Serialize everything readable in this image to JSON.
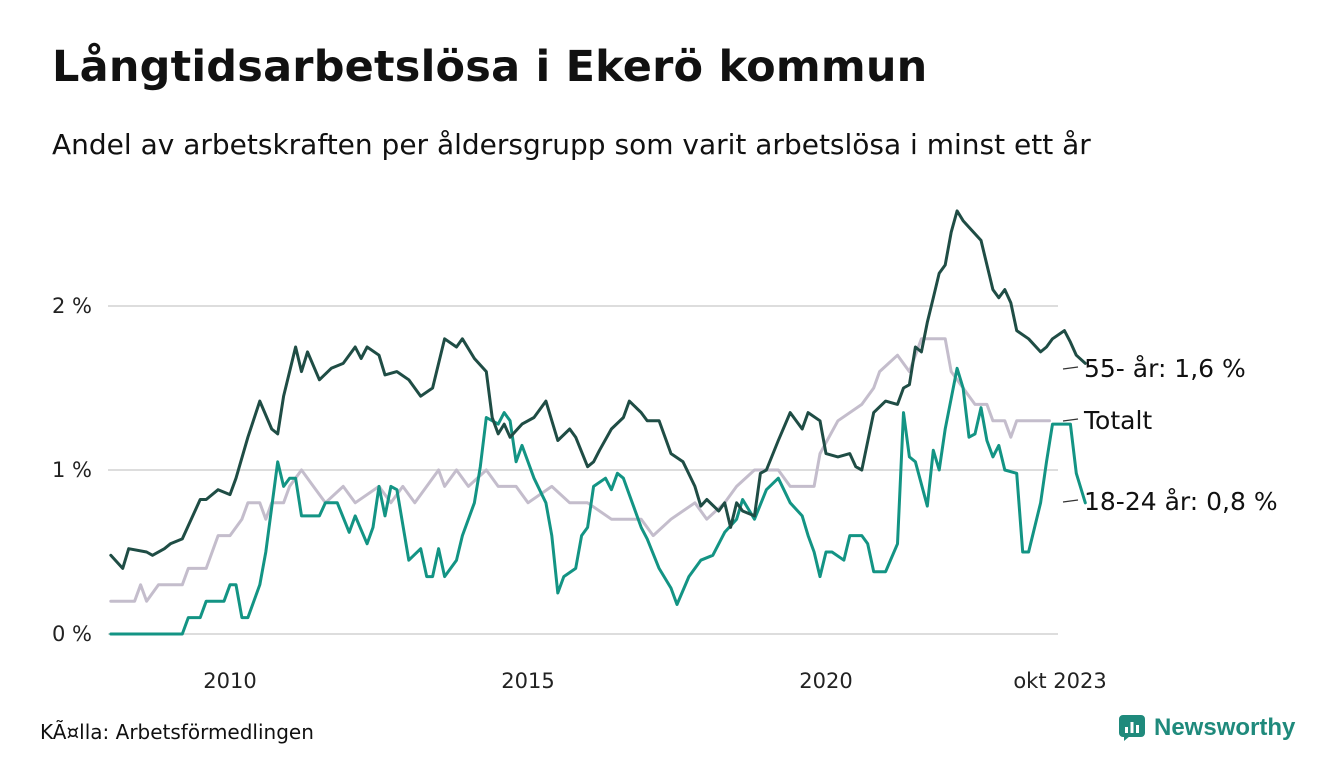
{
  "title": "Långtidsarbetslösa i Ekerö kommun",
  "subtitle": "Andel av arbetskraften per åldersgrupp som varit arbetslösa i minst ett år",
  "source": "KÃ¤lla: Arbetsförmedlingen",
  "brand": "Newsworthy",
  "colors": {
    "age55": "#1f4d45",
    "total": "#c4bdcc",
    "age1824": "#139484",
    "grid": "#dddddd",
    "brand": "#1f8a7c"
  },
  "chart_data": {
    "type": "line",
    "x_start": 2008.0,
    "x_end": 2023.75,
    "x_step_months": 1,
    "ylim": [
      0,
      2.6
    ],
    "yticks": [
      {
        "value": 0,
        "label": "0 %"
      },
      {
        "value": 1,
        "label": "1 %"
      },
      {
        "value": 2,
        "label": "2 %"
      }
    ],
    "xticks": [
      {
        "value": 2010,
        "label": "2010"
      },
      {
        "value": 2015,
        "label": "2015"
      },
      {
        "value": 2020,
        "label": "2020"
      },
      {
        "value": 2023.75,
        "label": "okt 2023"
      }
    ],
    "grid": true,
    "series": [
      {
        "name": "Totalt",
        "color_key": "total",
        "end_label": "Totalt",
        "anchors": [
          [
            2008.0,
            0.2
          ],
          [
            2008.4,
            0.2
          ],
          [
            2008.5,
            0.3
          ],
          [
            2008.6,
            0.2
          ],
          [
            2008.8,
            0.3
          ],
          [
            2009.2,
            0.3
          ],
          [
            2009.3,
            0.4
          ],
          [
            2009.6,
            0.4
          ],
          [
            2009.8,
            0.6
          ],
          [
            2010.0,
            0.6
          ],
          [
            2010.2,
            0.7
          ],
          [
            2010.3,
            0.8
          ],
          [
            2010.5,
            0.8
          ],
          [
            2010.6,
            0.7
          ],
          [
            2010.7,
            0.8
          ],
          [
            2010.9,
            0.8
          ],
          [
            2011.0,
            0.9
          ],
          [
            2011.2,
            1.0
          ],
          [
            2011.4,
            0.9
          ],
          [
            2011.6,
            0.8
          ],
          [
            2011.9,
            0.9
          ],
          [
            2012.1,
            0.8
          ],
          [
            2012.5,
            0.9
          ],
          [
            2012.7,
            0.8
          ],
          [
            2012.9,
            0.9
          ],
          [
            2013.1,
            0.8
          ],
          [
            2013.3,
            0.9
          ],
          [
            2013.5,
            1.0
          ],
          [
            2013.6,
            0.9
          ],
          [
            2013.8,
            1.0
          ],
          [
            2014.0,
            0.9
          ],
          [
            2014.3,
            1.0
          ],
          [
            2014.5,
            0.9
          ],
          [
            2014.8,
            0.9
          ],
          [
            2015.0,
            0.8
          ],
          [
            2015.4,
            0.9
          ],
          [
            2015.7,
            0.8
          ],
          [
            2016.0,
            0.8
          ],
          [
            2016.4,
            0.7
          ],
          [
            2016.9,
            0.7
          ],
          [
            2017.1,
            0.6
          ],
          [
            2017.4,
            0.7
          ],
          [
            2017.8,
            0.8
          ],
          [
            2018.0,
            0.7
          ],
          [
            2018.3,
            0.8
          ],
          [
            2018.5,
            0.9
          ],
          [
            2018.8,
            1.0
          ],
          [
            2019.2,
            1.0
          ],
          [
            2019.4,
            0.9
          ],
          [
            2019.8,
            0.9
          ],
          [
            2019.9,
            1.1
          ],
          [
            2020.2,
            1.3
          ],
          [
            2020.6,
            1.4
          ],
          [
            2020.8,
            1.5
          ],
          [
            2020.9,
            1.6
          ],
          [
            2021.2,
            1.7
          ],
          [
            2021.4,
            1.6
          ],
          [
            2021.5,
            1.7
          ],
          [
            2021.6,
            1.8
          ],
          [
            2022.0,
            1.8
          ],
          [
            2022.1,
            1.6
          ],
          [
            2022.3,
            1.5
          ],
          [
            2022.5,
            1.4
          ],
          [
            2022.7,
            1.4
          ],
          [
            2022.8,
            1.3
          ],
          [
            2023.0,
            1.3
          ],
          [
            2023.1,
            1.2
          ],
          [
            2023.2,
            1.3
          ],
          [
            2023.75,
            1.3
          ]
        ]
      },
      {
        "name": "18-24 år",
        "color_key": "age1824",
        "end_label": "18-24 år: 0,8 %",
        "anchors": [
          [
            2008.0,
            0.0
          ],
          [
            2009.2,
            0.0
          ],
          [
            2009.3,
            0.1
          ],
          [
            2009.5,
            0.1
          ],
          [
            2009.6,
            0.2
          ],
          [
            2009.9,
            0.2
          ],
          [
            2010.0,
            0.3
          ],
          [
            2010.1,
            0.3
          ],
          [
            2010.2,
            0.1
          ],
          [
            2010.3,
            0.1
          ],
          [
            2010.5,
            0.3
          ],
          [
            2010.6,
            0.5
          ],
          [
            2010.8,
            1.05
          ],
          [
            2010.9,
            0.9
          ],
          [
            2011.0,
            0.95
          ],
          [
            2011.1,
            0.95
          ],
          [
            2011.2,
            0.72
          ],
          [
            2011.5,
            0.72
          ],
          [
            2011.6,
            0.8
          ],
          [
            2011.8,
            0.8
          ],
          [
            2012.0,
            0.62
          ],
          [
            2012.1,
            0.72
          ],
          [
            2012.3,
            0.55
          ],
          [
            2012.4,
            0.65
          ],
          [
            2012.5,
            0.9
          ],
          [
            2012.6,
            0.72
          ],
          [
            2012.7,
            0.9
          ],
          [
            2012.8,
            0.88
          ],
          [
            2013.0,
            0.45
          ],
          [
            2013.2,
            0.52
          ],
          [
            2013.3,
            0.35
          ],
          [
            2013.4,
            0.35
          ],
          [
            2013.5,
            0.52
          ],
          [
            2013.6,
            0.35
          ],
          [
            2013.8,
            0.45
          ],
          [
            2013.9,
            0.6
          ],
          [
            2014.1,
            0.8
          ],
          [
            2014.2,
            1.02
          ],
          [
            2014.3,
            1.32
          ],
          [
            2014.5,
            1.28
          ],
          [
            2014.6,
            1.35
          ],
          [
            2014.7,
            1.3
          ],
          [
            2014.8,
            1.05
          ],
          [
            2014.9,
            1.15
          ],
          [
            2015.1,
            0.95
          ],
          [
            2015.3,
            0.8
          ],
          [
            2015.4,
            0.6
          ],
          [
            2015.5,
            0.25
          ],
          [
            2015.6,
            0.35
          ],
          [
            2015.8,
            0.4
          ],
          [
            2015.9,
            0.6
          ],
          [
            2016.0,
            0.65
          ],
          [
            2016.1,
            0.9
          ],
          [
            2016.3,
            0.95
          ],
          [
            2016.4,
            0.88
          ],
          [
            2016.5,
            0.98
          ],
          [
            2016.6,
            0.95
          ],
          [
            2016.7,
            0.85
          ],
          [
            2016.9,
            0.65
          ],
          [
            2017.0,
            0.58
          ],
          [
            2017.2,
            0.4
          ],
          [
            2017.4,
            0.28
          ],
          [
            2017.5,
            0.18
          ],
          [
            2017.7,
            0.35
          ],
          [
            2017.9,
            0.45
          ],
          [
            2018.1,
            0.48
          ],
          [
            2018.3,
            0.62
          ],
          [
            2018.5,
            0.7
          ],
          [
            2018.6,
            0.82
          ],
          [
            2018.8,
            0.7
          ],
          [
            2019.0,
            0.88
          ],
          [
            2019.2,
            0.95
          ],
          [
            2019.4,
            0.8
          ],
          [
            2019.6,
            0.72
          ],
          [
            2019.7,
            0.6
          ],
          [
            2019.8,
            0.5
          ],
          [
            2019.9,
            0.35
          ],
          [
            2020.0,
            0.5
          ],
          [
            2020.1,
            0.5
          ],
          [
            2020.3,
            0.45
          ],
          [
            2020.4,
            0.6
          ],
          [
            2020.6,
            0.6
          ],
          [
            2020.7,
            0.55
          ],
          [
            2020.8,
            0.38
          ],
          [
            2021.0,
            0.38
          ],
          [
            2021.2,
            0.55
          ],
          [
            2021.3,
            1.35
          ],
          [
            2021.4,
            1.08
          ],
          [
            2021.5,
            1.05
          ],
          [
            2021.7,
            0.78
          ],
          [
            2021.8,
            1.12
          ],
          [
            2021.9,
            1.0
          ],
          [
            2022.0,
            1.25
          ],
          [
            2022.2,
            1.62
          ],
          [
            2022.3,
            1.5
          ],
          [
            2022.4,
            1.2
          ],
          [
            2022.5,
            1.22
          ],
          [
            2022.6,
            1.38
          ],
          [
            2022.7,
            1.18
          ],
          [
            2022.8,
            1.08
          ],
          [
            2022.9,
            1.15
          ],
          [
            2023.0,
            1.0
          ],
          [
            2023.2,
            0.98
          ],
          [
            2023.3,
            0.5
          ],
          [
            2023.4,
            0.5
          ],
          [
            2023.6,
            0.8
          ],
          [
            2023.7,
            1.05
          ],
          [
            2023.8,
            1.28
          ],
          [
            2024.1,
            1.28
          ],
          [
            2024.2,
            0.98
          ],
          [
            2024.35,
            0.8
          ]
        ]
      },
      {
        "name": "55- år",
        "color_key": "age55",
        "end_label": "55- år: 1,6 %",
        "anchors": [
          [
            2008.0,
            0.48
          ],
          [
            2008.2,
            0.4
          ],
          [
            2008.3,
            0.52
          ],
          [
            2008.6,
            0.5
          ],
          [
            2008.7,
            0.48
          ],
          [
            2008.9,
            0.52
          ],
          [
            2009.0,
            0.55
          ],
          [
            2009.2,
            0.58
          ],
          [
            2009.5,
            0.82
          ],
          [
            2009.6,
            0.82
          ],
          [
            2009.8,
            0.88
          ],
          [
            2010.0,
            0.85
          ],
          [
            2010.1,
            0.95
          ],
          [
            2010.3,
            1.2
          ],
          [
            2010.5,
            1.42
          ],
          [
            2010.7,
            1.25
          ],
          [
            2010.8,
            1.22
          ],
          [
            2010.9,
            1.45
          ],
          [
            2011.0,
            1.6
          ],
          [
            2011.1,
            1.75
          ],
          [
            2011.2,
            1.6
          ],
          [
            2011.3,
            1.72
          ],
          [
            2011.5,
            1.55
          ],
          [
            2011.7,
            1.62
          ],
          [
            2011.9,
            1.65
          ],
          [
            2012.1,
            1.75
          ],
          [
            2012.2,
            1.68
          ],
          [
            2012.3,
            1.75
          ],
          [
            2012.5,
            1.7
          ],
          [
            2012.6,
            1.58
          ],
          [
            2012.8,
            1.6
          ],
          [
            2013.0,
            1.55
          ],
          [
            2013.2,
            1.45
          ],
          [
            2013.4,
            1.5
          ],
          [
            2013.6,
            1.8
          ],
          [
            2013.8,
            1.75
          ],
          [
            2013.9,
            1.8
          ],
          [
            2014.1,
            1.68
          ],
          [
            2014.3,
            1.6
          ],
          [
            2014.4,
            1.32
          ],
          [
            2014.5,
            1.22
          ],
          [
            2014.6,
            1.28
          ],
          [
            2014.7,
            1.2
          ],
          [
            2014.9,
            1.28
          ],
          [
            2015.1,
            1.32
          ],
          [
            2015.3,
            1.42
          ],
          [
            2015.5,
            1.18
          ],
          [
            2015.7,
            1.25
          ],
          [
            2015.8,
            1.2
          ],
          [
            2016.0,
            1.02
          ],
          [
            2016.1,
            1.05
          ],
          [
            2016.2,
            1.12
          ],
          [
            2016.4,
            1.25
          ],
          [
            2016.6,
            1.32
          ],
          [
            2016.7,
            1.42
          ],
          [
            2016.9,
            1.35
          ],
          [
            2017.0,
            1.3
          ],
          [
            2017.2,
            1.3
          ],
          [
            2017.4,
            1.1
          ],
          [
            2017.6,
            1.05
          ],
          [
            2017.8,
            0.9
          ],
          [
            2017.9,
            0.78
          ],
          [
            2018.0,
            0.82
          ],
          [
            2018.2,
            0.75
          ],
          [
            2018.3,
            0.8
          ],
          [
            2018.4,
            0.65
          ],
          [
            2018.5,
            0.8
          ],
          [
            2018.6,
            0.75
          ],
          [
            2018.8,
            0.72
          ],
          [
            2018.9,
            0.98
          ],
          [
            2019.0,
            1.0
          ],
          [
            2019.2,
            1.18
          ],
          [
            2019.4,
            1.35
          ],
          [
            2019.6,
            1.25
          ],
          [
            2019.7,
            1.35
          ],
          [
            2019.9,
            1.3
          ],
          [
            2020.0,
            1.1
          ],
          [
            2020.2,
            1.08
          ],
          [
            2020.4,
            1.1
          ],
          [
            2020.5,
            1.02
          ],
          [
            2020.6,
            1.0
          ],
          [
            2020.8,
            1.35
          ],
          [
            2021.0,
            1.42
          ],
          [
            2021.2,
            1.4
          ],
          [
            2021.3,
            1.5
          ],
          [
            2021.4,
            1.52
          ],
          [
            2021.5,
            1.75
          ],
          [
            2021.6,
            1.72
          ],
          [
            2021.7,
            1.9
          ],
          [
            2021.8,
            2.05
          ],
          [
            2021.9,
            2.2
          ],
          [
            2022.0,
            2.25
          ],
          [
            2022.1,
            2.45
          ],
          [
            2022.2,
            2.58
          ],
          [
            2022.3,
            2.52
          ],
          [
            2022.4,
            2.48
          ],
          [
            2022.6,
            2.4
          ],
          [
            2022.8,
            2.1
          ],
          [
            2022.9,
            2.05
          ],
          [
            2023.0,
            2.1
          ],
          [
            2023.1,
            2.02
          ],
          [
            2023.2,
            1.85
          ],
          [
            2023.4,
            1.8
          ],
          [
            2023.6,
            1.72
          ],
          [
            2023.7,
            1.75
          ],
          [
            2023.8,
            1.8
          ],
          [
            2024.0,
            1.85
          ],
          [
            2024.1,
            1.78
          ],
          [
            2024.2,
            1.7
          ],
          [
            2024.35,
            1.65
          ]
        ]
      }
    ]
  }
}
